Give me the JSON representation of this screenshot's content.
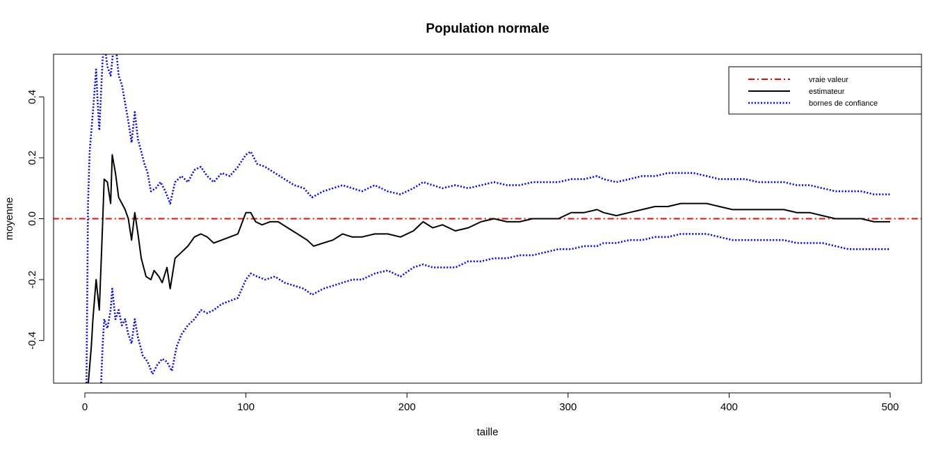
{
  "chart_data": {
    "type": "line",
    "title": "Population normale",
    "xlabel": "taille",
    "ylabel": "moyenne",
    "xlim": [
      0,
      520
    ],
    "ylim": [
      -0.54,
      0.54
    ],
    "x_ticks": [
      0,
      100,
      200,
      300,
      400,
      500
    ],
    "x_tick_labels": [
      "0",
      "100",
      "200",
      "300",
      "400",
      "500"
    ],
    "y_ticks": [
      -0.4,
      -0.2,
      0.0,
      0.2,
      0.4
    ],
    "y_tick_labels": [
      "-0.4",
      "-0.2",
      "0.0",
      "0.2",
      "0.4"
    ],
    "grid": false,
    "legend_position": "top-right",
    "series": [
      {
        "name": "vraie valeur",
        "color": "#ff0000",
        "style": "dashdot",
        "x": [
          -20,
          520
        ],
        "y": [
          0,
          0
        ]
      },
      {
        "name": "estimateur",
        "color": "#000000",
        "style": "solid",
        "x": [
          2,
          4,
          5,
          7,
          9,
          11,
          12,
          14,
          16,
          17,
          19,
          21,
          23,
          25,
          27,
          29,
          31,
          33,
          35,
          38,
          41,
          43,
          46,
          48,
          51,
          53,
          56,
          60,
          64,
          68,
          72,
          76,
          80,
          85,
          90,
          95,
          100,
          103,
          106,
          110,
          115,
          120,
          126,
          132,
          138,
          142,
          148,
          154,
          160,
          166,
          172,
          180,
          188,
          196,
          204,
          210,
          216,
          222,
          230,
          238,
          246,
          254,
          262,
          270,
          278,
          286,
          294,
          302,
          310,
          318,
          322,
          330,
          338,
          346,
          354,
          362,
          370,
          378,
          386,
          394,
          402,
          410,
          418,
          426,
          434,
          442,
          450,
          458,
          466,
          474,
          482,
          490,
          500
        ],
        "y": [
          -0.55,
          -0.42,
          -0.33,
          -0.2,
          -0.3,
          -0.02,
          0.13,
          0.12,
          0.05,
          0.21,
          0.15,
          0.07,
          0.05,
          0.03,
          0.0,
          -0.07,
          0.02,
          -0.05,
          -0.13,
          -0.19,
          -0.2,
          -0.17,
          -0.19,
          -0.21,
          -0.16,
          -0.23,
          -0.13,
          -0.11,
          -0.09,
          -0.06,
          -0.05,
          -0.06,
          -0.08,
          -0.07,
          -0.06,
          -0.05,
          0.02,
          0.02,
          -0.01,
          -0.02,
          -0.01,
          -0.01,
          -0.03,
          -0.05,
          -0.07,
          -0.09,
          -0.08,
          -0.07,
          -0.05,
          -0.06,
          -0.06,
          -0.05,
          -0.05,
          -0.06,
          -0.04,
          -0.01,
          -0.03,
          -0.02,
          -0.04,
          -0.03,
          -0.01,
          0.0,
          -0.01,
          -0.01,
          0.0,
          0.0,
          0.0,
          0.02,
          0.02,
          0.03,
          0.02,
          0.01,
          0.02,
          0.03,
          0.04,
          0.04,
          0.05,
          0.05,
          0.05,
          0.04,
          0.03,
          0.03,
          0.03,
          0.03,
          0.03,
          0.02,
          0.02,
          0.01,
          0.0,
          0.0,
          0.0,
          -0.01,
          -0.01
        ]
      },
      {
        "name": "bornes de confiance",
        "color": "#0000ff",
        "style": "dotted",
        "x": [
          1,
          2,
          3,
          5,
          7,
          8,
          9,
          11,
          12,
          14,
          16,
          18,
          19,
          21,
          23,
          25,
          27,
          29,
          31,
          33,
          35,
          37,
          39,
          41,
          44,
          47,
          50,
          53,
          56,
          60,
          64,
          68,
          72,
          76,
          80,
          85,
          90,
          95,
          100,
          103,
          107,
          112,
          118,
          124,
          130,
          136,
          141,
          148,
          154,
          160,
          166,
          172,
          180,
          188,
          196,
          204,
          210,
          216,
          222,
          230,
          238,
          246,
          254,
          262,
          270,
          278,
          286,
          294,
          302,
          310,
          318,
          322,
          330,
          338,
          346,
          354,
          362,
          370,
          378,
          386,
          394,
          402,
          410,
          418,
          426,
          434,
          442,
          450,
          458,
          466,
          474,
          482,
          490,
          500
        ],
        "y": [
          -0.55,
          0.05,
          0.22,
          0.35,
          0.49,
          0.38,
          0.29,
          0.52,
          0.58,
          0.5,
          0.47,
          0.57,
          0.58,
          0.47,
          0.44,
          0.38,
          0.32,
          0.25,
          0.35,
          0.26,
          0.22,
          0.18,
          0.15,
          0.09,
          0.1,
          0.12,
          0.09,
          0.05,
          0.12,
          0.14,
          0.12,
          0.16,
          0.17,
          0.14,
          0.12,
          0.15,
          0.14,
          0.17,
          0.21,
          0.22,
          0.18,
          0.17,
          0.15,
          0.13,
          0.11,
          0.1,
          0.07,
          0.09,
          0.1,
          0.11,
          0.1,
          0.09,
          0.11,
          0.09,
          0.08,
          0.1,
          0.12,
          0.11,
          0.1,
          0.11,
          0.1,
          0.11,
          0.12,
          0.11,
          0.11,
          0.12,
          0.12,
          0.12,
          0.13,
          0.13,
          0.14,
          0.13,
          0.12,
          0.13,
          0.14,
          0.14,
          0.15,
          0.15,
          0.15,
          0.14,
          0.13,
          0.13,
          0.13,
          0.12,
          0.12,
          0.12,
          0.11,
          0.11,
          0.1,
          0.09,
          0.09,
          0.09,
          0.08,
          0.08
        ]
      },
      {
        "name": "bornes de confiance",
        "color": "#0000ff",
        "style": "dotted",
        "x": [
          10,
          11,
          12,
          14,
          16,
          17,
          19,
          21,
          23,
          25,
          27,
          29,
          31,
          33,
          36,
          39,
          42,
          45,
          48,
          51,
          54,
          57,
          60,
          64,
          68,
          72,
          76,
          80,
          85,
          90,
          95,
          100,
          103,
          107,
          112,
          118,
          124,
          130,
          136,
          141,
          148,
          154,
          160,
          166,
          172,
          180,
          188,
          196,
          204,
          210,
          216,
          222,
          230,
          238,
          246,
          254,
          262,
          270,
          278,
          286,
          294,
          302,
          310,
          318,
          322,
          330,
          338,
          346,
          354,
          362,
          370,
          378,
          386,
          394,
          402,
          410,
          418,
          426,
          434,
          442,
          450,
          458,
          466,
          474,
          482,
          490,
          500
        ],
        "y": [
          -0.55,
          -0.42,
          -0.33,
          -0.36,
          -0.3,
          -0.23,
          -0.33,
          -0.3,
          -0.35,
          -0.33,
          -0.38,
          -0.41,
          -0.33,
          -0.39,
          -0.45,
          -0.47,
          -0.51,
          -0.48,
          -0.46,
          -0.47,
          -0.5,
          -0.42,
          -0.38,
          -0.35,
          -0.33,
          -0.3,
          -0.31,
          -0.3,
          -0.28,
          -0.27,
          -0.26,
          -0.2,
          -0.18,
          -0.19,
          -0.2,
          -0.19,
          -0.21,
          -0.22,
          -0.23,
          -0.25,
          -0.23,
          -0.22,
          -0.21,
          -0.2,
          -0.2,
          -0.18,
          -0.17,
          -0.19,
          -0.16,
          -0.15,
          -0.16,
          -0.16,
          -0.16,
          -0.14,
          -0.14,
          -0.13,
          -0.13,
          -0.12,
          -0.12,
          -0.11,
          -0.1,
          -0.1,
          -0.09,
          -0.09,
          -0.08,
          -0.08,
          -0.07,
          -0.07,
          -0.06,
          -0.06,
          -0.05,
          -0.05,
          -0.05,
          -0.06,
          -0.07,
          -0.07,
          -0.07,
          -0.07,
          -0.07,
          -0.08,
          -0.08,
          -0.08,
          -0.09,
          -0.1,
          -0.1,
          -0.1,
          -0.1
        ]
      }
    ],
    "legend": [
      {
        "label": "vraie valeur",
        "color": "#ff0000",
        "style": "dashdot"
      },
      {
        "label": "estimateur",
        "color": "#000000",
        "style": "solid"
      },
      {
        "label": "bornes de confiance",
        "color": "#0000ff",
        "style": "dotted"
      }
    ]
  }
}
